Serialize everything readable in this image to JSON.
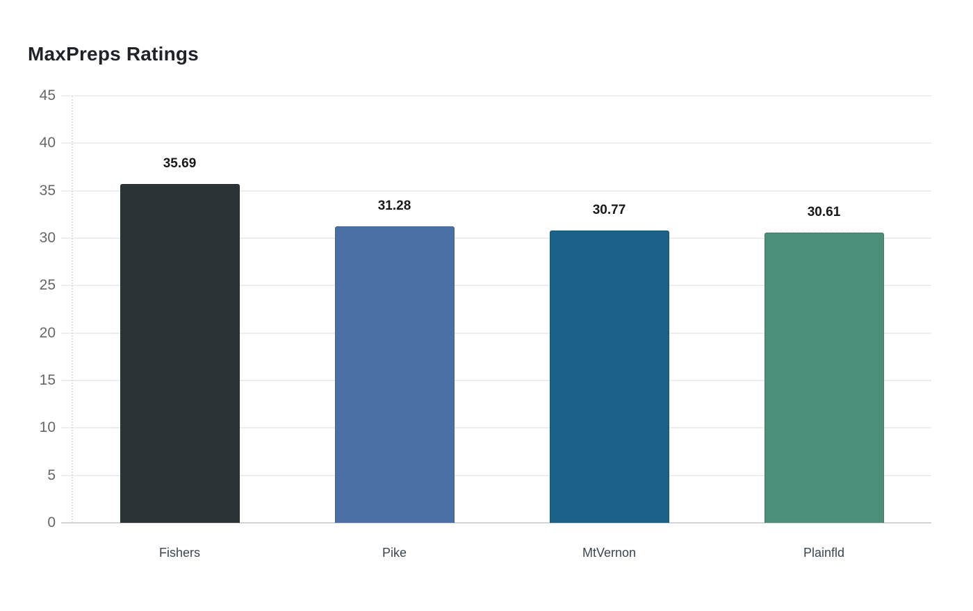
{
  "chart_data": {
    "type": "bar",
    "title": "MaxPreps Ratings",
    "categories": [
      "Fishers",
      "Pike",
      "MtVernon",
      "Plainfld"
    ],
    "values": [
      35.69,
      31.28,
      30.77,
      30.61
    ],
    "value_labels": [
      "35.69",
      "31.28",
      "30.77",
      "30.61"
    ],
    "bar_colors": [
      "#2b3337",
      "#4a70a6",
      "#1a6189",
      "#4d8e7b"
    ],
    "xlabel": "",
    "ylabel": "",
    "ylim": [
      0,
      45
    ],
    "yticks": [
      0,
      5,
      10,
      15,
      20,
      25,
      30,
      35,
      40,
      45
    ],
    "grid": "horizontal",
    "legend": "none",
    "background_color": "#ffffff",
    "colors": {
      "title": "#1f2328",
      "grid": "#ededef",
      "baseline": "#d4d4d8",
      "axis_line": "#e0e0e4",
      "ytick_label": "#666666",
      "xtick_label": "#3b454e",
      "value_label": "#17191b"
    }
  }
}
